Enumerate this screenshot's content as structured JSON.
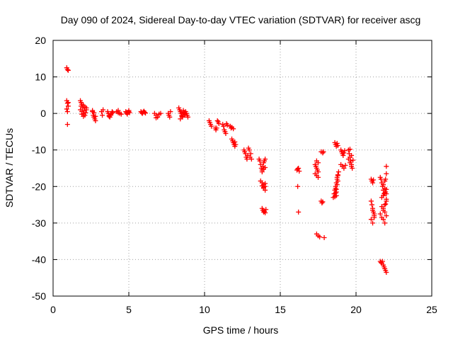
{
  "chart_data": {
    "type": "scatter",
    "title": "Day 090 of 2024, Sidereal Day-to-day VTEC variation (SDTVAR) for receiver ascg",
    "xlabel": "GPS time / hours",
    "ylabel": "SDTVAR / TECUs",
    "xlim": [
      0,
      25
    ],
    "ylim": [
      -50,
      20
    ],
    "xticks": [
      0,
      5,
      10,
      15,
      20,
      25
    ],
    "yticks": [
      -50,
      -40,
      -30,
      -20,
      -10,
      0,
      10,
      20
    ],
    "xtick_labels": [
      "0",
      "5",
      "10",
      "15",
      "20",
      "25"
    ],
    "ytick_labels": [
      "-50",
      "-40",
      "-30",
      "-20",
      "-10",
      "0",
      "10",
      "20"
    ],
    "grid": true,
    "marker": "+",
    "color": "#ff0000",
    "series": [
      {
        "name": "SDTVAR",
        "x": [
          0.9,
          0.95,
          1.0,
          0.9,
          0.95,
          1.0,
          0.9,
          0.95,
          1.0,
          0.95,
          1.8,
          1.85,
          1.9,
          2.0,
          2.1,
          2.2,
          1.8,
          1.9,
          2.0,
          2.1,
          2.2,
          1.85,
          1.95,
          2.05,
          2.15,
          1.9,
          2.0,
          2.6,
          2.65,
          2.7,
          2.75,
          2.8,
          2.6,
          2.7,
          2.8,
          3.2,
          3.25,
          3.3,
          3.6,
          3.65,
          3.7,
          3.75,
          3.8,
          3.85,
          3.9,
          3.95,
          3.7,
          3.8,
          4.2,
          4.3,
          4.4,
          4.5,
          4.3,
          4.8,
          4.85,
          4.9,
          4.95,
          5.0,
          5.05,
          4.9,
          5.0,
          5.8,
          5.85,
          5.9,
          5.95,
          6.0,
          6.05,
          6.1,
          6.7,
          6.8,
          6.9,
          7.0,
          7.1,
          6.8,
          7.6,
          7.65,
          7.7,
          7.75,
          8.3,
          8.35,
          8.4,
          8.45,
          8.5,
          8.55,
          8.6,
          8.65,
          8.7,
          8.75,
          8.8,
          8.85,
          8.9,
          8.4,
          8.5,
          8.6,
          8.7,
          8.8,
          10.3,
          10.35,
          10.4,
          10.45,
          10.7,
          10.75,
          10.8,
          10.85,
          10.9,
          10.95,
          11.2,
          11.25,
          11.3,
          11.35,
          11.4,
          11.45,
          11.5,
          11.7,
          11.75,
          11.8,
          11.85,
          11.9,
          11.95,
          12.0,
          12.05,
          11.8,
          11.9,
          12.0,
          12.6,
          12.65,
          12.7,
          12.75,
          12.8,
          12.85,
          12.9,
          12.95,
          13.0,
          13.05,
          13.1,
          13.6,
          13.65,
          13.7,
          13.75,
          13.8,
          13.85,
          13.9,
          13.95,
          14.0,
          13.7,
          13.8,
          13.9,
          14.0,
          13.9,
          14.0,
          13.8,
          13.9,
          14.0,
          13.8,
          13.9,
          14.0,
          13.8,
          13.85,
          13.9,
          13.95,
          14.0,
          14.05,
          16.1,
          16.15,
          16.2,
          16.25,
          16.15,
          16.2,
          17.3,
          17.35,
          17.4,
          17.45,
          17.5,
          17.4,
          17.5,
          17.4,
          17.5,
          17.6,
          17.3,
          17.4,
          17.5,
          17.7,
          17.75,
          17.8,
          17.85,
          17.7,
          17.8,
          17.9,
          18.5,
          18.55,
          18.6,
          18.65,
          18.7,
          18.75,
          18.8,
          18.85,
          18.6,
          18.65,
          18.7,
          18.75,
          18.8,
          18.65,
          18.7,
          18.75,
          18.8,
          18.7,
          18.75,
          18.8,
          18.6,
          18.65,
          18.7,
          19.0,
          19.05,
          19.1,
          19.15,
          19.2,
          19.25,
          19.0,
          19.1,
          19.2,
          19.3,
          19.5,
          19.55,
          19.6,
          19.65,
          19.7,
          19.75,
          19.5,
          19.6,
          19.7,
          19.6,
          19.7,
          19.8,
          21.0,
          21.05,
          21.1,
          21.15,
          21.0,
          21.05,
          21.1,
          21.15,
          21.2,
          21.0,
          21.1,
          21.2,
          21.1,
          21.2,
          21.6,
          21.65,
          21.7,
          21.75,
          21.8,
          21.85,
          21.9,
          21.95,
          22.0,
          21.7,
          21.8,
          21.9,
          22.0,
          21.8,
          21.9,
          21.6,
          21.7,
          21.8,
          21.9,
          22.0,
          21.7,
          21.8,
          21.9,
          22.0,
          21.8,
          21.9,
          22.0,
          21.95,
          21.6,
          21.65,
          21.7,
          21.75,
          21.8,
          21.85,
          21.9,
          21.95,
          22.0,
          22.0,
          22.0,
          21.95
        ],
        "y": [
          12.5,
          12.0,
          11.8,
          3.5,
          2.8,
          2.0,
          1.2,
          0.5,
          3.0,
          -3.0,
          3.5,
          3.0,
          2.5,
          2.2,
          1.8,
          1.5,
          1.0,
          0.5,
          0.0,
          -0.5,
          1.0,
          2.0,
          1.5,
          0.8,
          0.2,
          -0.2,
          -0.8,
          0.5,
          -0.5,
          -1.0,
          -1.5,
          -2.0,
          0.8,
          0.2,
          -0.8,
          0.5,
          -0.5,
          1.0,
          0.5,
          0.0,
          -0.5,
          -1.0,
          -0.5,
          0.0,
          0.5,
          0.2,
          -0.8,
          -0.2,
          0.5,
          0.2,
          0.0,
          -0.2,
          0.8,
          0.5,
          0.2,
          0.0,
          0.3,
          0.8,
          0.2,
          -0.2,
          0.5,
          0.5,
          0.2,
          0.0,
          0.4,
          0.6,
          0.3,
          0.1,
          0.0,
          -0.5,
          -1.0,
          -0.2,
          0.0,
          -1.2,
          0.0,
          -0.5,
          -1.0,
          0.5,
          1.5,
          1.0,
          0.5,
          0.0,
          -0.5,
          -1.0,
          0.8,
          0.3,
          -0.2,
          0.5,
          0.0,
          -0.5,
          -1.0,
          -1.5,
          -0.8,
          0.2,
          -0.5,
          0.0,
          -2.0,
          -2.5,
          -3.0,
          -3.5,
          -4.0,
          -4.5,
          -4.0,
          -2.0,
          -2.3,
          -2.8,
          -3.0,
          -3.5,
          -4.5,
          -5.0,
          -5.5,
          -2.8,
          -3.2,
          -3.5,
          -4.0,
          -7.0,
          -7.5,
          -8.0,
          -8.5,
          -9.0,
          -8.5,
          -3.8,
          -4.2,
          -7.8,
          -10.0,
          -10.5,
          -11.0,
          -12.0,
          -12.5,
          -11.5,
          -9.5,
          -10.0,
          -12.0,
          -11.0,
          -12.5,
          -12.5,
          -13.0,
          -14.0,
          -15.0,
          -15.5,
          -14.5,
          -13.5,
          -13.0,
          -12.5,
          -18.5,
          -19.0,
          -19.5,
          -20.0,
          -20.5,
          -21.0,
          -19.8,
          -20.2,
          -19.2,
          -16.0,
          -15.2,
          -14.8,
          -26.0,
          -26.5,
          -27.0,
          -26.8,
          -27.2,
          -26.3,
          -15.5,
          -15.2,
          -15.0,
          -15.8,
          -20.0,
          -27.0,
          -14.0,
          -14.5,
          -15.0,
          -15.5,
          -16.0,
          -13.0,
          -13.5,
          -33.0,
          -33.5,
          -33.8,
          -16.5,
          -17.0,
          -17.5,
          -24.0,
          -24.5,
          -24.2,
          -10.5,
          -10.5,
          -10.8,
          -34.0,
          -23.0,
          -22.0,
          -21.0,
          -20.0,
          -19.0,
          -18.0,
          -17.0,
          -16.0,
          -8.0,
          -8.5,
          -9.0,
          -8.2,
          -8.8,
          -20.5,
          -21.5,
          -19.5,
          -18.5,
          -22.5,
          -17.5,
          -16.8,
          -22.8,
          -21.8,
          -20.8,
          -10.0,
          -10.5,
          -11.0,
          -11.5,
          -10.8,
          -10.2,
          -14.0,
          -14.5,
          -15.0,
          -14.2,
          -10.0,
          -11.0,
          -12.0,
          -13.0,
          -14.0,
          -15.0,
          -12.5,
          -13.5,
          -14.5,
          -9.8,
          -11.5,
          -12.8,
          -18.0,
          -18.5,
          -19.0,
          -18.2,
          -24.0,
          -25.0,
          -26.0,
          -27.0,
          -28.0,
          -29.0,
          -30.0,
          -27.5,
          -26.5,
          -28.5,
          -17.5,
          -18.0,
          -19.0,
          -20.0,
          -21.0,
          -22.0,
          -20.5,
          -21.5,
          -22.0,
          -25.5,
          -26.0,
          -27.0,
          -28.0,
          -29.0,
          -30.0,
          -27.5,
          -28.5,
          -26.5,
          -25.0,
          -24.0,
          -23.0,
          -22.5,
          -21.8,
          -20.8,
          -19.5,
          -18.5,
          -23.5,
          -24.8,
          -40.5,
          -40.8,
          -41.0,
          -40.5,
          -41.5,
          -42.0,
          -42.5,
          -43.0,
          -43.5,
          -14.5,
          -16.5,
          -18.0
        ]
      }
    ]
  }
}
